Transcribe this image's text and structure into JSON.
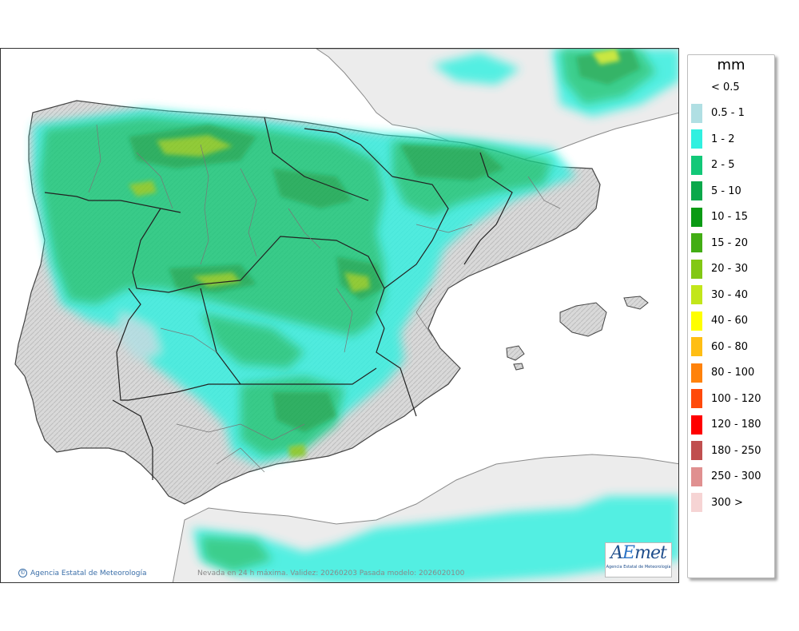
{
  "map": {
    "caption": "Nevada en 24 h máxima. Validez: 20260203 Pasada modelo: 2026020100",
    "credit": "Agencia Estatal de Meteorología",
    "logo": {
      "wordmark": "AEmet",
      "subtitle": "Agencia Estatal de Meteorología"
    }
  },
  "legend": {
    "unit": "mm",
    "items": [
      {
        "label": "< 0.5",
        "color": "#ffffff"
      },
      {
        "label": "0.5 - 1",
        "color": "#b0dfe3"
      },
      {
        "label": "1 - 2",
        "color": "#30f0e0"
      },
      {
        "label": "2 - 5",
        "color": "#12c878"
      },
      {
        "label": "5 - 10",
        "color": "#0aa84b"
      },
      {
        "label": "10 - 15",
        "color": "#0a9a14"
      },
      {
        "label": "15 - 20",
        "color": "#42ad14"
      },
      {
        "label": "20 - 30",
        "color": "#82c814"
      },
      {
        "label": "30 - 40",
        "color": "#c2e61a"
      },
      {
        "label": "40 - 60",
        "color": "#ffff00"
      },
      {
        "label": "60 - 80",
        "color": "#ffbe14"
      },
      {
        "label": "80 - 100",
        "color": "#ff820a"
      },
      {
        "label": "100 - 120",
        "color": "#ff4a0a"
      },
      {
        "label": "120 - 180",
        "color": "#ff0000"
      },
      {
        "label": "180 - 250",
        "color": "#c04f4f"
      },
      {
        "label": "250 - 300",
        "color": "#e09090"
      },
      {
        "label": "300 >",
        "color": "#f6d4d4"
      }
    ]
  }
}
